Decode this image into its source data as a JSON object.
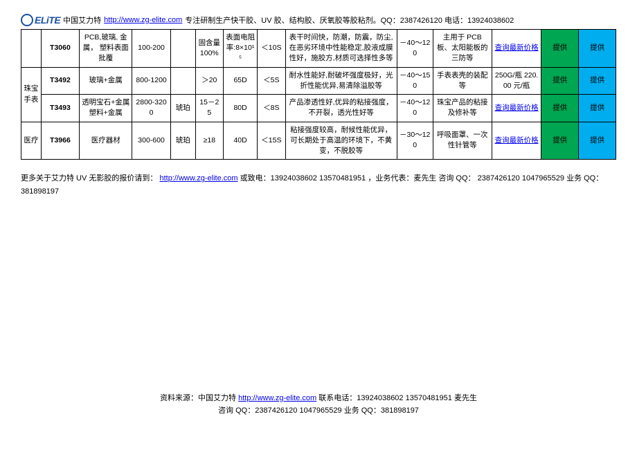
{
  "header": {
    "brand_cn": "中国艾力特",
    "brand_url_text": "http://www.zg-elite.com",
    "header_rest": "专注研制生产快干胶、UV 胶、结构胶、厌氧胶等胶粘剂。QQ：2387426120  电话：13924038602"
  },
  "categories": {
    "jewelry": "珠宝手表",
    "medical": "医疗"
  },
  "colors": {
    "green": "#00a651",
    "blue": "#00aeef"
  },
  "price_link_text": "查询最新价格",
  "provide_text": "提供",
  "rows": [
    {
      "code": "T3060",
      "material": "PCB,玻璃, 金属， 塑料表面批覆",
      "viscosity": "100-200",
      "color": "",
      "solid": "固含量100%",
      "resist": "表面电阻率:8×10¹⁵",
      "cure": "＜10S",
      "feature": "表干时间快，防潮，防震，防尘,在恶劣环境中性能稳定,胶液成膜性好，施胶方,材质可选择性多等",
      "temp": "－40～120",
      "app": "主用于 PCB 板、太阳能板的三防等",
      "price_mode": "link"
    },
    {
      "category_key": "jewelry",
      "category_rowspan": 2,
      "code": "T3492",
      "material": "玻璃+金属",
      "viscosity": "800-1200",
      "color": "",
      "solid": "＞20",
      "resist": "65D",
      "cure": "＜5S",
      "feature": "耐水性能好,耐破坏强度极好，光折性能优异,易清除溢胶等",
      "temp": "－40～150",
      "app": "手表表壳的装配等",
      "price_mode": "text",
      "price_text": "250G/瓶 220.00 元/瓶"
    },
    {
      "code": "T3493",
      "material": "透明宝石+金属 塑料+金属",
      "viscosity": "2800-3200",
      "color": "琥珀",
      "solid": "15－25",
      "resist": "80D",
      "cure": "＜8S",
      "feature": "产品渗透性好,优异的粘接强度，不开裂，透光性好等",
      "temp": "－40～120",
      "app": "珠宝产品的粘接及修补等",
      "price_mode": "link"
    },
    {
      "category_key": "medical",
      "category_rowspan": 1,
      "code": "T3966",
      "material": "医疗器材",
      "viscosity": "300-600",
      "color": "琥珀",
      "solid": "≥18",
      "resist": "40D",
      "cure": "＜15S",
      "feature": "粘接强度较高，耐候性能优异，可长期处于高温的环境下，不黄变，不脱胶等",
      "temp": "－30～120",
      "app": "呼吸面罩、一次性针管等",
      "price_mode": "link"
    }
  ],
  "footer_note": {
    "prefix": "更多关于艾力特 UV 无影胶的报价请到：",
    "url_text": "http://www.zg-elite.com",
    "rest": " 或致电：13924038602 13570481951 ，业务代表：麦先生  咨询 QQ： 2387426120   1047965529 业务 QQ： 381898197"
  },
  "page_footer": {
    "line1_prefix": "资料来源：中国艾力特 ",
    "line1_url": "http://www.zg-elite.com",
    "line1_rest": "    联系电话：13924038602   13570481951 麦先生",
    "line2": "咨询 QQ：2387426120   1047965529  业务 QQ：381898197"
  }
}
